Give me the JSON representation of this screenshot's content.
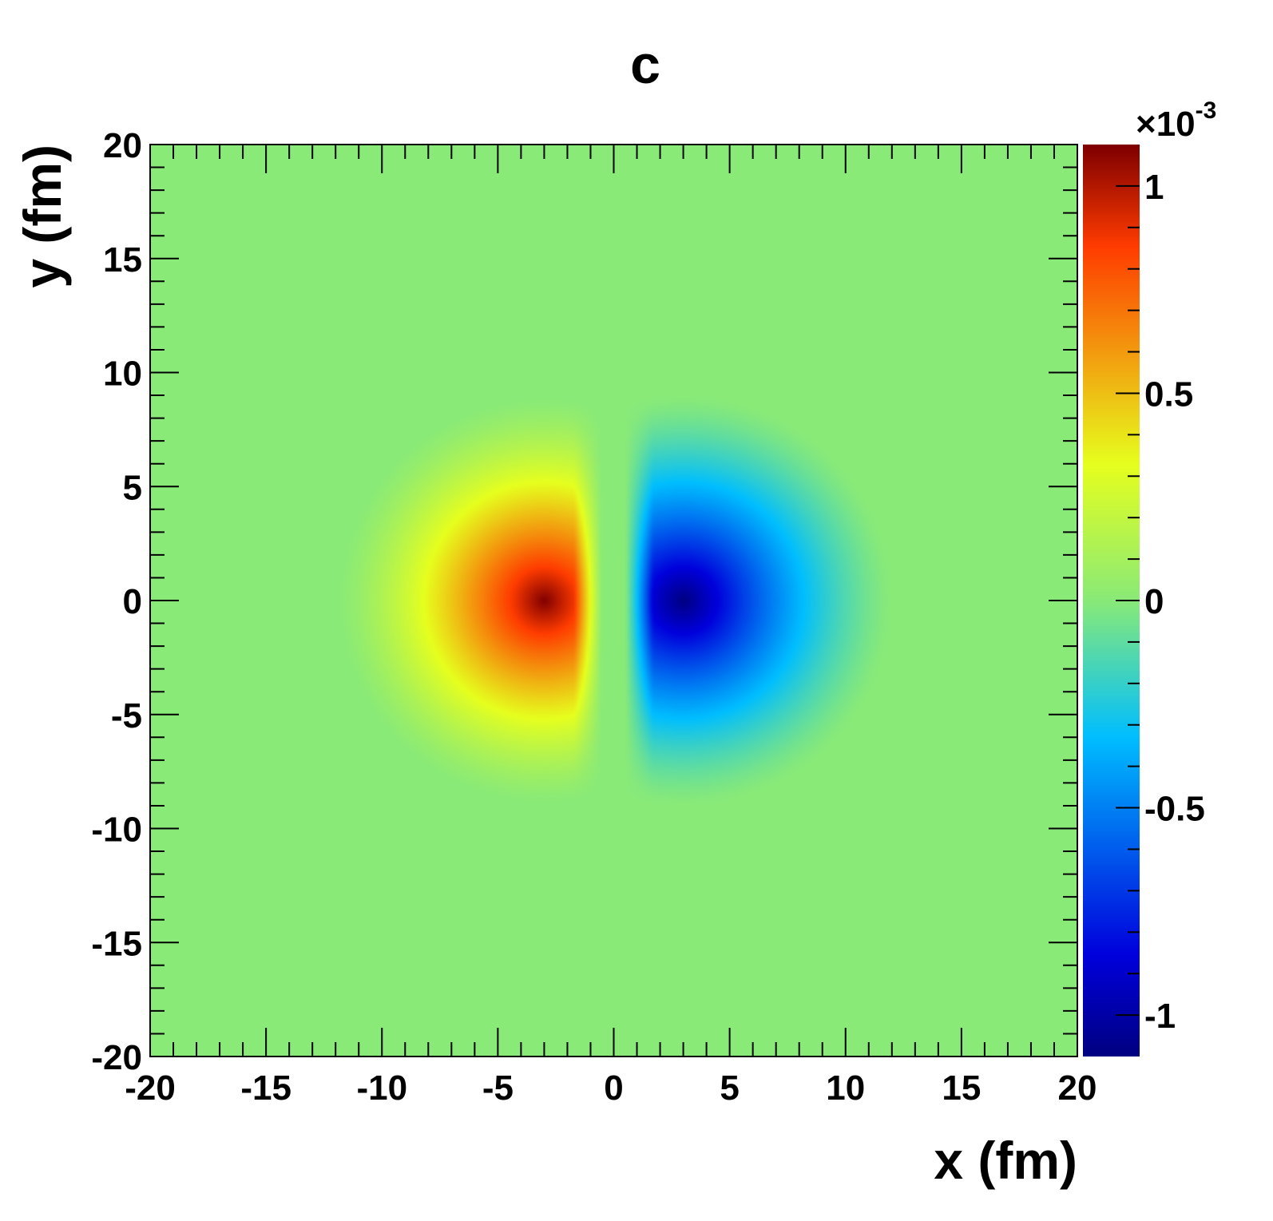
{
  "chart_data": {
    "type": "heatmap",
    "title": "c",
    "xlabel": "x (fm)",
    "ylabel": "y (fm)",
    "xlim": [
      -20,
      20
    ],
    "ylim": [
      -20,
      20
    ],
    "x_ticks": [
      "-20",
      "-15",
      "-10",
      "-5",
      "0",
      "5",
      "10",
      "15",
      "20"
    ],
    "y_ticks": [
      "20",
      "15",
      "10",
      "5",
      "0",
      "-5",
      "-10",
      "-15",
      "-20"
    ],
    "x_tick_values": [
      -20,
      -15,
      -10,
      -5,
      0,
      5,
      10,
      15,
      20
    ],
    "y_tick_values": [
      20,
      15,
      10,
      5,
      0,
      -5,
      -10,
      -15,
      -20
    ],
    "colorbar": {
      "range": [
        -1.1,
        1.1
      ],
      "multiplier": "×10",
      "exponent": "-3",
      "ticks": [
        "1",
        "0.5",
        "0",
        "-0.5",
        "-1"
      ],
      "tick_values": [
        1,
        0.5,
        0,
        -0.5,
        -1
      ]
    },
    "features": [
      {
        "sign": "positive",
        "center_x": -3,
        "center_y": 0,
        "peak_value": 1.1,
        "extent_radius": 9,
        "inner_edge_x": -0.5
      },
      {
        "sign": "negative",
        "center_x": 3,
        "center_y": 0,
        "peak_value": -1.1,
        "extent_radius": 9,
        "inner_edge_x": 0.5
      }
    ],
    "grid": false,
    "colormap": "jet"
  }
}
